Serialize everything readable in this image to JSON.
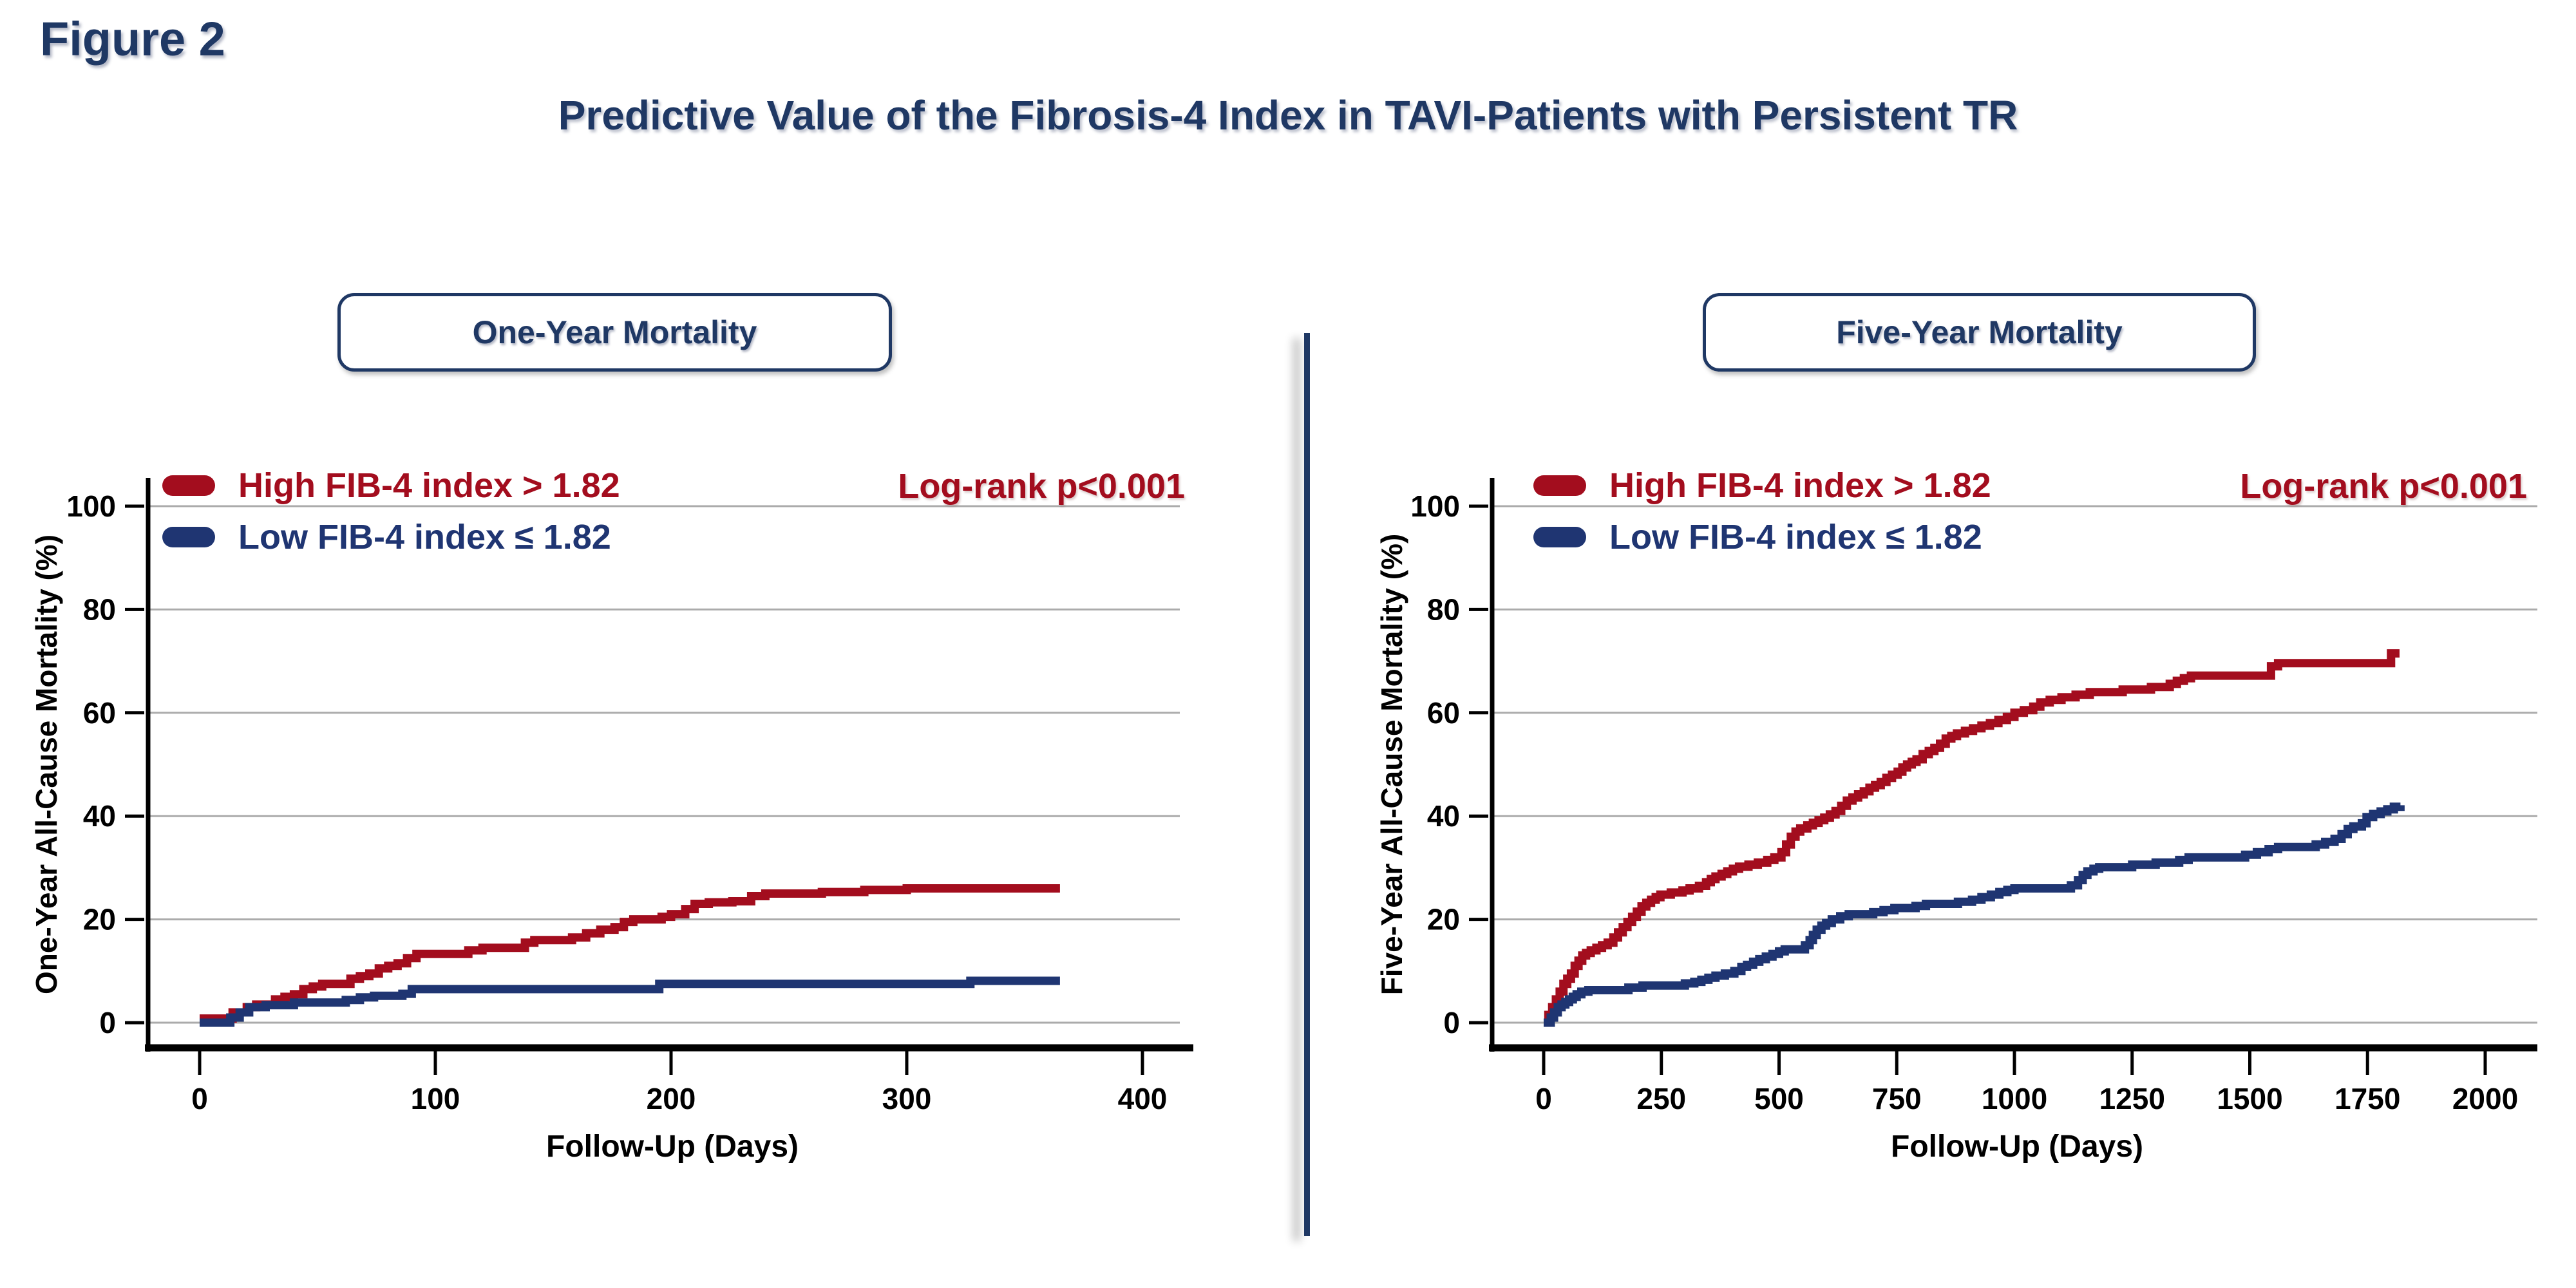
{
  "figure_label": "Figure 2",
  "title": "Predictive Value of the Fibrosis-4 Index in TAVI-Patients with Persistent TR",
  "colors": {
    "accent_navy": "#1F3864",
    "curve_red": "#A30D1E",
    "curve_blue": "#1F3572",
    "grid_gray": "#ABABAB",
    "axis_black": "#000000"
  },
  "chart_data": [
    {
      "type": "line",
      "subtype": "kaplan-meier-step",
      "panel_header": "One-Year Mortality",
      "xlabel": "Follow-Up (Days)",
      "ylabel": "One-Year All-Cause Mortality (%)",
      "xlim": [
        0,
        415
      ],
      "ylim": [
        0,
        100
      ],
      "x_ticks": [
        0,
        100,
        200,
        300,
        400
      ],
      "y_ticks": [
        0,
        20,
        40,
        60,
        80,
        100
      ],
      "grid": "horizontal",
      "legend_position": "upper-left-inside",
      "annotation": "Log-rank p<0.001",
      "series": [
        {
          "name": "High FIB-4 index > 1.82",
          "color": "#A30D1E",
          "points": [
            [
              0,
              0.8
            ],
            [
              14,
              2
            ],
            [
              20,
              3
            ],
            [
              24,
              3.5
            ],
            [
              32,
              4.5
            ],
            [
              36,
              5
            ],
            [
              40,
              5.5
            ],
            [
              44,
              6.5
            ],
            [
              48,
              7
            ],
            [
              52,
              7.5
            ],
            [
              64,
              8.5
            ],
            [
              68,
              9
            ],
            [
              72,
              9.5
            ],
            [
              76,
              10.5
            ],
            [
              80,
              11
            ],
            [
              84,
              11.5
            ],
            [
              88,
              12.5
            ],
            [
              92,
              13.3
            ],
            [
              114,
              14
            ],
            [
              120,
              14.5
            ],
            [
              138,
              15.5
            ],
            [
              142,
              16
            ],
            [
              158,
              16.5
            ],
            [
              164,
              17.3
            ],
            [
              170,
              18
            ],
            [
              176,
              18.5
            ],
            [
              180,
              19.5
            ],
            [
              184,
              20
            ],
            [
              196,
              20.5
            ],
            [
              200,
              21
            ],
            [
              206,
              22
            ],
            [
              210,
              23
            ],
            [
              216,
              23.3
            ],
            [
              226,
              23.5
            ],
            [
              234,
              24.5
            ],
            [
              240,
              25
            ],
            [
              264,
              25.3
            ],
            [
              282,
              25.7
            ],
            [
              300,
              26
            ],
            [
              365,
              26
            ]
          ]
        },
        {
          "name": "Low FIB-4 index ≤ 1.82",
          "color": "#1F3572",
          "points": [
            [
              0,
              0
            ],
            [
              13,
              1
            ],
            [
              17,
              2
            ],
            [
              21,
              3
            ],
            [
              28,
              3.4
            ],
            [
              40,
              3.9
            ],
            [
              62,
              4.4
            ],
            [
              68,
              4.9
            ],
            [
              74,
              5.2
            ],
            [
              86,
              5.6
            ],
            [
              90,
              6.5
            ],
            [
              195,
              7.5
            ],
            [
              327,
              8.1
            ],
            [
              365,
              8.1
            ]
          ]
        }
      ]
    },
    {
      "type": "line",
      "subtype": "kaplan-meier-step",
      "panel_header": "Five-Year Mortality",
      "xlabel": "Follow-Up (Days)",
      "ylabel": "Five-Year All-Cause Mortality (%)",
      "xlim": [
        0,
        2110
      ],
      "ylim": [
        0,
        100
      ],
      "x_ticks": [
        0,
        250,
        500,
        750,
        1000,
        1250,
        1500,
        1750,
        2000
      ],
      "y_ticks": [
        0,
        20,
        40,
        60,
        80,
        100
      ],
      "grid": "horizontal",
      "legend_position": "upper-left-inside",
      "annotation": "Log-rank p<0.001",
      "series": [
        {
          "name": "High FIB-4 index > 1.82",
          "color": "#A30D1E",
          "points": [
            [
              0,
              0
            ],
            [
              10,
              1.5
            ],
            [
              18,
              3
            ],
            [
              26,
              4.5
            ],
            [
              34,
              6
            ],
            [
              42,
              7.5
            ],
            [
              50,
              8.5
            ],
            [
              58,
              9.5
            ],
            [
              66,
              11
            ],
            [
              74,
              12
            ],
            [
              82,
              13
            ],
            [
              90,
              13.5
            ],
            [
              100,
              14
            ],
            [
              112,
              14.5
            ],
            [
              124,
              15
            ],
            [
              136,
              15.5
            ],
            [
              148,
              16.5
            ],
            [
              158,
              17.5
            ],
            [
              168,
              18.5
            ],
            [
              178,
              19.5
            ],
            [
              188,
              20.5
            ],
            [
              198,
              21.5
            ],
            [
              208,
              22.5
            ],
            [
              218,
              23.2
            ],
            [
              228,
              23.8
            ],
            [
              238,
              24.3
            ],
            [
              248,
              24.8
            ],
            [
              270,
              25.2
            ],
            [
              295,
              25.6
            ],
            [
              310,
              26
            ],
            [
              330,
              26.5
            ],
            [
              345,
              27.2
            ],
            [
              355,
              27.8
            ],
            [
              365,
              28.3
            ],
            [
              378,
              28.8
            ],
            [
              390,
              29.3
            ],
            [
              402,
              29.8
            ],
            [
              415,
              30.2
            ],
            [
              435,
              30.6
            ],
            [
              455,
              31
            ],
            [
              475,
              31.5
            ],
            [
              490,
              32
            ],
            [
              505,
              33
            ],
            [
              515,
              34.5
            ],
            [
              525,
              36
            ],
            [
              535,
              37
            ],
            [
              545,
              37.6
            ],
            [
              560,
              38.2
            ],
            [
              572,
              38.7
            ],
            [
              584,
              39.2
            ],
            [
              596,
              39.7
            ],
            [
              608,
              40.3
            ],
            [
              620,
              41
            ],
            [
              632,
              42
            ],
            [
              644,
              43
            ],
            [
              656,
              43.6
            ],
            [
              668,
              44.2
            ],
            [
              680,
              44.8
            ],
            [
              692,
              45.5
            ],
            [
              704,
              46
            ],
            [
              716,
              46.6
            ],
            [
              728,
              47.4
            ],
            [
              740,
              48
            ],
            [
              752,
              48.6
            ],
            [
              762,
              49.4
            ],
            [
              772,
              50
            ],
            [
              782,
              50.5
            ],
            [
              792,
              51
            ],
            [
              805,
              52
            ],
            [
              818,
              52.6
            ],
            [
              830,
              53.2
            ],
            [
              842,
              54
            ],
            [
              854,
              55
            ],
            [
              866,
              55.5
            ],
            [
              878,
              56
            ],
            [
              895,
              56.5
            ],
            [
              912,
              57
            ],
            [
              930,
              57.5
            ],
            [
              948,
              58
            ],
            [
              966,
              58.6
            ],
            [
              984,
              59.2
            ],
            [
              1000,
              60
            ],
            [
              1020,
              60.5
            ],
            [
              1040,
              61.2
            ],
            [
              1055,
              62
            ],
            [
              1075,
              62.5
            ],
            [
              1100,
              63
            ],
            [
              1130,
              63.5
            ],
            [
              1160,
              64
            ],
            [
              1230,
              64.5
            ],
            [
              1290,
              65
            ],
            [
              1330,
              65.6
            ],
            [
              1345,
              66.2
            ],
            [
              1360,
              66.7
            ],
            [
              1375,
              67.2
            ],
            [
              1545,
              69
            ],
            [
              1560,
              69.6
            ],
            [
              1795,
              69.6
            ],
            [
              1800,
              71.5
            ],
            [
              1818,
              71.5
            ]
          ]
        },
        {
          "name": "Low FIB-4 index ≤ 1.82",
          "color": "#1F3572",
          "points": [
            [
              0,
              0
            ],
            [
              15,
              1
            ],
            [
              22,
              2
            ],
            [
              30,
              3
            ],
            [
              38,
              3.5
            ],
            [
              46,
              4
            ],
            [
              54,
              4.5
            ],
            [
              62,
              5
            ],
            [
              70,
              5.5
            ],
            [
              80,
              6
            ],
            [
              95,
              6.3
            ],
            [
              180,
              6.8
            ],
            [
              210,
              7.2
            ],
            [
              300,
              7.6
            ],
            [
              320,
              7.9
            ],
            [
              335,
              8.3
            ],
            [
              350,
              8.7
            ],
            [
              365,
              9.1
            ],
            [
              385,
              9.5
            ],
            [
              405,
              10
            ],
            [
              420,
              10.8
            ],
            [
              432,
              11.2
            ],
            [
              445,
              11.8
            ],
            [
              458,
              12.3
            ],
            [
              472,
              12.8
            ],
            [
              486,
              13.3
            ],
            [
              500,
              13.8
            ],
            [
              512,
              14.2
            ],
            [
              555,
              15
            ],
            [
              565,
              16
            ],
            [
              572,
              17
            ],
            [
              580,
              18
            ],
            [
              590,
              18.8
            ],
            [
              600,
              19.3
            ],
            [
              612,
              20
            ],
            [
              630,
              20.6
            ],
            [
              648,
              21
            ],
            [
              700,
              21.4
            ],
            [
              722,
              21.8
            ],
            [
              745,
              22.2
            ],
            [
              790,
              22.6
            ],
            [
              812,
              23
            ],
            [
              880,
              23.4
            ],
            [
              910,
              23.8
            ],
            [
              930,
              24.3
            ],
            [
              950,
              24.8
            ],
            [
              968,
              25.3
            ],
            [
              985,
              25.7
            ],
            [
              1000,
              26
            ],
            [
              1120,
              26.6
            ],
            [
              1135,
              27.6
            ],
            [
              1145,
              28.6
            ],
            [
              1155,
              29.3
            ],
            [
              1168,
              29.8
            ],
            [
              1180,
              30.1
            ],
            [
              1250,
              30.6
            ],
            [
              1300,
              31
            ],
            [
              1350,
              31.5
            ],
            [
              1370,
              32
            ],
            [
              1490,
              32.5
            ],
            [
              1515,
              33
            ],
            [
              1540,
              33.6
            ],
            [
              1560,
              34
            ],
            [
              1640,
              34.5
            ],
            [
              1660,
              35
            ],
            [
              1680,
              35.6
            ],
            [
              1695,
              36.5
            ],
            [
              1708,
              37.5
            ],
            [
              1720,
              38
            ],
            [
              1738,
              38.6
            ],
            [
              1748,
              39.8
            ],
            [
              1762,
              40.4
            ],
            [
              1778,
              40.9
            ],
            [
              1792,
              41.3
            ],
            [
              1806,
              41.8
            ],
            [
              1820,
              42.1
            ]
          ]
        }
      ]
    }
  ]
}
